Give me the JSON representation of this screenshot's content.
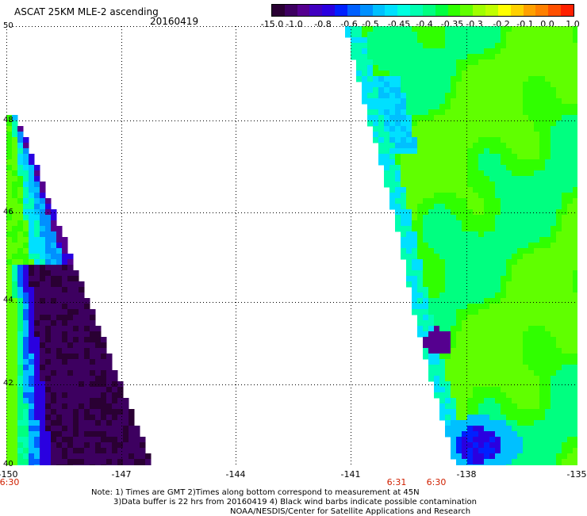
{
  "header": {
    "title": "ASCAT 25KM MLE-2 ascending",
    "date": "20160419"
  },
  "colorbar": {
    "labels": [
      "-15.0",
      "-1.0",
      "-0.8",
      "-0.6",
      "-0.5",
      "-0.45",
      "-0.4",
      "-0.35",
      "-0.3",
      "-0.2",
      "-0.1",
      "0.0",
      "1.0"
    ],
    "colors": [
      "#2a0033",
      "#55008f",
      "#2a00e0",
      "#0040ff",
      "#0090ff",
      "#00e0ff",
      "#00ffb0",
      "#00ff40",
      "#60ff00",
      "#c0ff00",
      "#ffd000",
      "#ff8000",
      "#ff2000"
    ]
  },
  "map": {
    "lat_labels": [
      "50",
      "48",
      "46",
      "44",
      "42",
      "40"
    ],
    "lon_labels": [
      "-150",
      "-147",
      "-144",
      "-141",
      "-138",
      "-135"
    ],
    "time_labels": [
      "6:30",
      "6:31",
      "6:30"
    ]
  },
  "notes": [
    "Note: 1) Times are GMT 2)Times along bottom correspond to measurement at 45N",
    "3)Data buffer is 22 hrs from 20160419 4) Black wind barbs indicate possible contamination",
    "NOAA/NESDIS/Center for Satellite Applications and Research"
  ]
}
